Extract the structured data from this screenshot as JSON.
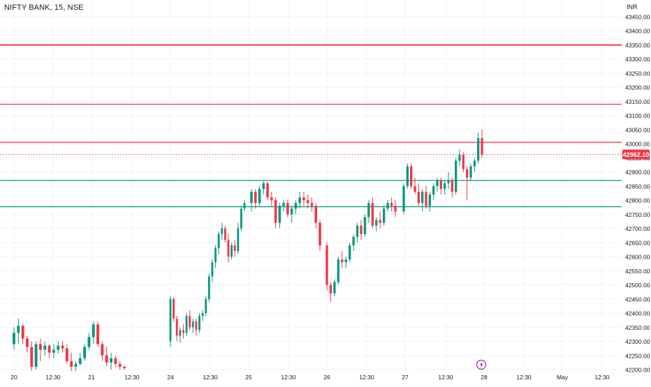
{
  "chart_title": "NIFTY BANK, 15, NSE",
  "currency": "INR",
  "price_ticks": [
    "43450.00",
    "43400.00",
    "43350.00",
    "43300.00",
    "43250.00",
    "43200.00",
    "43150.00",
    "43100.00",
    "43050.00",
    "43000.00",
    "42950.00",
    "42900.00",
    "42850.00",
    "42800.00",
    "42750.00",
    "42700.00",
    "42650.00",
    "42600.00",
    "42550.00",
    "42500.00",
    "42450.00",
    "42400.00",
    "42350.00",
    "42300.00",
    "42250.00",
    "42200.00"
  ],
  "time_ticks": [
    "20",
    "12:30",
    "21",
    "12:30",
    "24",
    "12:30",
    "25",
    "12:30",
    "26",
    "12:30",
    "27",
    "12:30",
    "28",
    "12:30",
    "May",
    "12:30"
  ],
  "last_price": "42962.10",
  "colors": {
    "up": "#089981",
    "down": "#f23645",
    "resistance": "#f23645",
    "support": "#089981",
    "last_price": "#f23645",
    "grid": "#f0f3fa",
    "axis_text": "#131722"
  },
  "icons": {
    "event": "lightning-icon"
  },
  "chart_data": {
    "type": "candlestick",
    "title": "NIFTY BANK, 15, NSE",
    "y_unit": "INR",
    "ylim": [
      42190,
      43480
    ],
    "grid": true,
    "last_price": 42962.1,
    "horizontal_levels": [
      {
        "price": 43350,
        "kind": "resistance"
      },
      {
        "price": 43140,
        "kind": "resistance"
      },
      {
        "price": 43005,
        "kind": "resistance"
      },
      {
        "price": 42870,
        "kind": "support"
      },
      {
        "price": 42777,
        "kind": "support"
      }
    ],
    "sessions": [
      {
        "label": "20",
        "candles": [
          [
            42290,
            42350,
            42270,
            42330
          ],
          [
            42330,
            42380,
            42290,
            42355
          ],
          [
            42355,
            42360,
            42290,
            42310
          ],
          [
            42310,
            42320,
            42260,
            42280
          ],
          [
            42280,
            42300,
            42195,
            42210
          ],
          [
            42210,
            42300,
            42200,
            42290
          ],
          [
            42290,
            42310,
            42230,
            42270
          ],
          [
            42270,
            42300,
            42250,
            42285
          ],
          [
            42285,
            42290,
            42240,
            42260
          ],
          [
            42260,
            42290,
            42240,
            42270
          ],
          [
            42270,
            42300,
            42255,
            42285
          ],
          [
            42285,
            42300,
            42260,
            42275
          ],
          [
            42275,
            42290,
            42220,
            42230
          ],
          [
            42230,
            42260,
            42195,
            42210
          ],
          [
            42210,
            42230,
            42195,
            42220
          ],
          [
            42220,
            42260,
            42215,
            42240
          ],
          [
            42240,
            42290,
            42230,
            42280
          ],
          [
            42280,
            42330,
            42270,
            42315
          ],
          [
            42315,
            42370,
            42290,
            42360
          ],
          [
            42360,
            42370,
            42280,
            42290
          ],
          [
            42290,
            42300,
            42230,
            42250
          ],
          [
            42250,
            42280,
            42210,
            42225
          ],
          [
            42225,
            42260,
            42200,
            42240
          ],
          [
            42240,
            42250,
            42210,
            42220
          ],
          [
            42220,
            42230,
            42200,
            42210
          ],
          [
            42210,
            42215,
            42198,
            42205
          ]
        ]
      },
      {
        "label": "24",
        "candles": [
          [
            42300,
            42460,
            42280,
            42450
          ],
          [
            42450,
            42455,
            42370,
            42380
          ],
          [
            42380,
            42390,
            42300,
            42320
          ],
          [
            42320,
            42350,
            42295,
            42340
          ],
          [
            42340,
            42360,
            42310,
            42330
          ],
          [
            42330,
            42400,
            42320,
            42390
          ],
          [
            42390,
            42410,
            42340,
            42350
          ],
          [
            42350,
            42380,
            42330,
            42370
          ],
          [
            42370,
            42380,
            42320,
            42340
          ],
          [
            42340,
            42400,
            42330,
            42390
          ],
          [
            42390,
            42410,
            42370,
            42400
          ],
          [
            42400,
            42460,
            42390,
            42450
          ],
          [
            42450,
            42540,
            42440,
            42530
          ],
          [
            42530,
            42590,
            42510,
            42580
          ],
          [
            42580,
            42640,
            42560,
            42630
          ],
          [
            42630,
            42690,
            42610,
            42680
          ],
          [
            42680,
            42720,
            42660,
            42700
          ],
          [
            42700,
            42710,
            42650,
            42660
          ],
          [
            42660,
            42680,
            42580,
            42600
          ],
          [
            42600,
            42650,
            42590,
            42640
          ],
          [
            42640,
            42660,
            42600,
            42620
          ],
          [
            42620,
            42720,
            42610,
            42700
          ],
          [
            42700,
            42780,
            42690,
            42770
          ],
          [
            42770,
            42800,
            42760,
            42790
          ]
        ]
      },
      {
        "label": "25",
        "candles": [
          [
            42790,
            42840,
            42760,
            42830
          ],
          [
            42830,
            42840,
            42770,
            42790
          ],
          [
            42790,
            42850,
            42780,
            42840
          ],
          [
            42840,
            42870,
            42820,
            42860
          ],
          [
            42860,
            42865,
            42800,
            42810
          ],
          [
            42810,
            42830,
            42780,
            42800
          ],
          [
            42800,
            42810,
            42700,
            42720
          ],
          [
            42720,
            42790,
            42700,
            42780
          ],
          [
            42780,
            42800,
            42760,
            42790
          ],
          [
            42790,
            42800,
            42740,
            42750
          ],
          [
            42750,
            42780,
            42720,
            42770
          ],
          [
            42770,
            42800,
            42750,
            42790
          ],
          [
            42790,
            42830,
            42770,
            42810
          ],
          [
            42810,
            42830,
            42780,
            42800
          ],
          [
            42800,
            42820,
            42770,
            42790
          ],
          [
            42790,
            42810,
            42760,
            42780
          ],
          [
            42780,
            42790,
            42700,
            42720
          ],
          [
            42720,
            42730,
            42620,
            42640
          ]
        ]
      },
      {
        "label": "26",
        "candles": [
          [
            42640,
            42650,
            42480,
            42500
          ],
          [
            42500,
            42510,
            42440,
            42470
          ],
          [
            42470,
            42520,
            42460,
            42510
          ],
          [
            42510,
            42600,
            42500,
            42590
          ],
          [
            42590,
            42620,
            42560,
            42580
          ],
          [
            42580,
            42600,
            42560,
            42590
          ],
          [
            42590,
            42650,
            42580,
            42640
          ],
          [
            42640,
            42680,
            42620,
            42670
          ],
          [
            42670,
            42720,
            42650,
            42710
          ],
          [
            42710,
            42730,
            42660,
            42680
          ],
          [
            42680,
            42750,
            42670,
            42740
          ],
          [
            42740,
            42800,
            42720,
            42790
          ],
          [
            42790,
            42810,
            42700,
            42710
          ],
          [
            42710,
            42740,
            42690,
            42730
          ],
          [
            42730,
            42760,
            42700,
            42720
          ],
          [
            42720,
            42780,
            42710,
            42770
          ],
          [
            42770,
            42800,
            42760,
            42790
          ],
          [
            42790,
            42810,
            42760,
            42780
          ],
          [
            42780,
            42800,
            42740,
            42760
          ]
        ]
      },
      {
        "label": "27",
        "candles": [
          [
            42760,
            42860,
            42750,
            42850
          ],
          [
            42850,
            42930,
            42840,
            42920
          ],
          [
            42920,
            42930,
            42840,
            42850
          ],
          [
            42850,
            42880,
            42820,
            42830
          ],
          [
            42830,
            42860,
            42780,
            42790
          ],
          [
            42790,
            42840,
            42760,
            42830
          ],
          [
            42830,
            42850,
            42770,
            42780
          ],
          [
            42780,
            42830,
            42760,
            42820
          ],
          [
            42820,
            42860,
            42800,
            42850
          ],
          [
            42850,
            42880,
            42830,
            42870
          ],
          [
            42870,
            42880,
            42820,
            42840
          ],
          [
            42840,
            42870,
            42820,
            42860
          ],
          [
            42860,
            42900,
            42840,
            42870
          ],
          [
            42870,
            42880,
            42810,
            42830
          ],
          [
            42830,
            42950,
            42820,
            42940
          ],
          [
            42940,
            42980,
            42920,
            42960
          ],
          [
            42960,
            42970,
            42900,
            42910
          ],
          [
            42910,
            42920,
            42800,
            42880
          ],
          [
            42880,
            42930,
            42870,
            42920
          ],
          [
            42920,
            42950,
            42900,
            42940
          ],
          [
            42940,
            43040,
            42930,
            43020
          ],
          [
            43020,
            43050,
            42950,
            42962.1
          ]
        ]
      }
    ]
  }
}
